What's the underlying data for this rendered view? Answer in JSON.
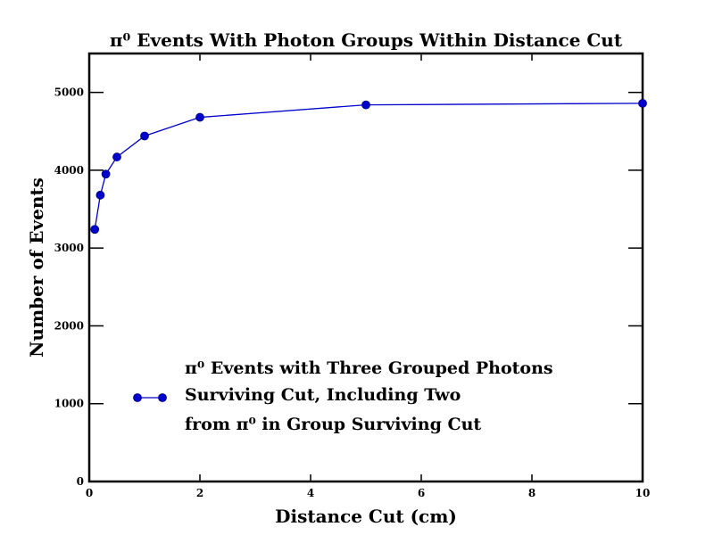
{
  "chart_data": {
    "type": "line",
    "title": "π⁰  Events With Photon Groups Within Distance Cut",
    "xlabel": "Distance Cut (cm)",
    "ylabel": "Number of Events",
    "xlim": [
      0,
      10
    ],
    "ylim": [
      0,
      5500
    ],
    "xticks": [
      0,
      2,
      4,
      6,
      8,
      10
    ],
    "yticks": [
      0,
      1000,
      2000,
      3000,
      4000,
      5000
    ],
    "grid": false,
    "legend_position": "lower-left",
    "line_color": "#0000cc",
    "series": [
      {
        "legend_lines": [
          "π⁰  Events with Three Grouped Photons",
          "Surviving Cut, Including Two",
          "from π⁰  in Group Surviving Cut"
        ],
        "x": [
          0.1,
          0.2,
          0.3,
          0.5,
          1,
          2,
          5,
          10
        ],
        "y": [
          3240,
          3680,
          3950,
          4170,
          4440,
          4680,
          4840,
          4860
        ]
      }
    ]
  }
}
